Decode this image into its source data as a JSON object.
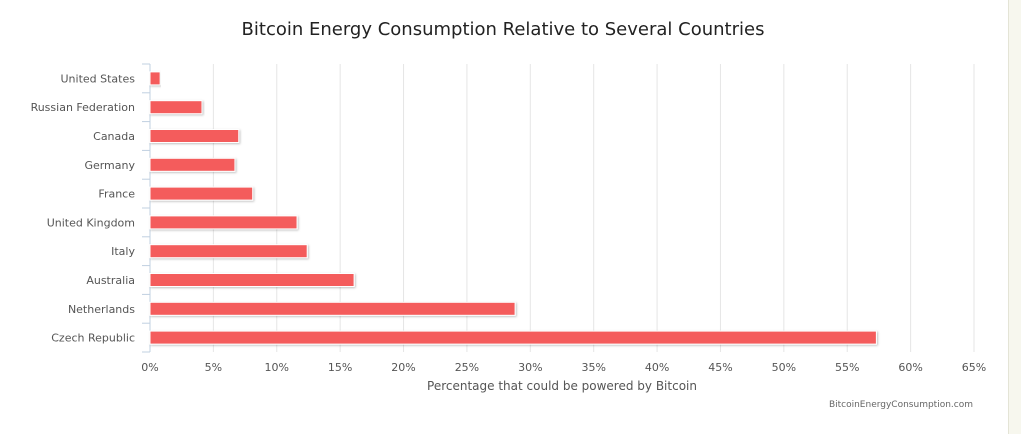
{
  "chart_data": {
    "type": "bar",
    "orientation": "horizontal",
    "title": "Bitcoin Energy Consumption Relative to Several Countries",
    "xlabel": "Percentage that could be powered by Bitcoin",
    "ylabel": "",
    "categories": [
      "United States",
      "Russian Federation",
      "Canada",
      "Germany",
      "France",
      "United Kingdom",
      "Italy",
      "Australia",
      "Netherlands",
      "Czech Republic"
    ],
    "values": [
      0.8,
      4.1,
      7.0,
      6.7,
      8.1,
      11.6,
      12.4,
      16.1,
      28.8,
      57.3
    ],
    "xlim": [
      0,
      65
    ],
    "ticks": [
      0,
      5,
      10,
      15,
      20,
      25,
      30,
      35,
      40,
      45,
      50,
      55,
      60,
      65
    ],
    "tick_labels": [
      "0%",
      "5%",
      "10%",
      "15%",
      "20%",
      "25%",
      "30%",
      "35%",
      "40%",
      "45%",
      "50%",
      "55%",
      "60%",
      "65%"
    ],
    "grid": true,
    "legend": "none",
    "bar_color": "#f45b5b",
    "credit": "BitcoinEnergyConsumption.com"
  }
}
